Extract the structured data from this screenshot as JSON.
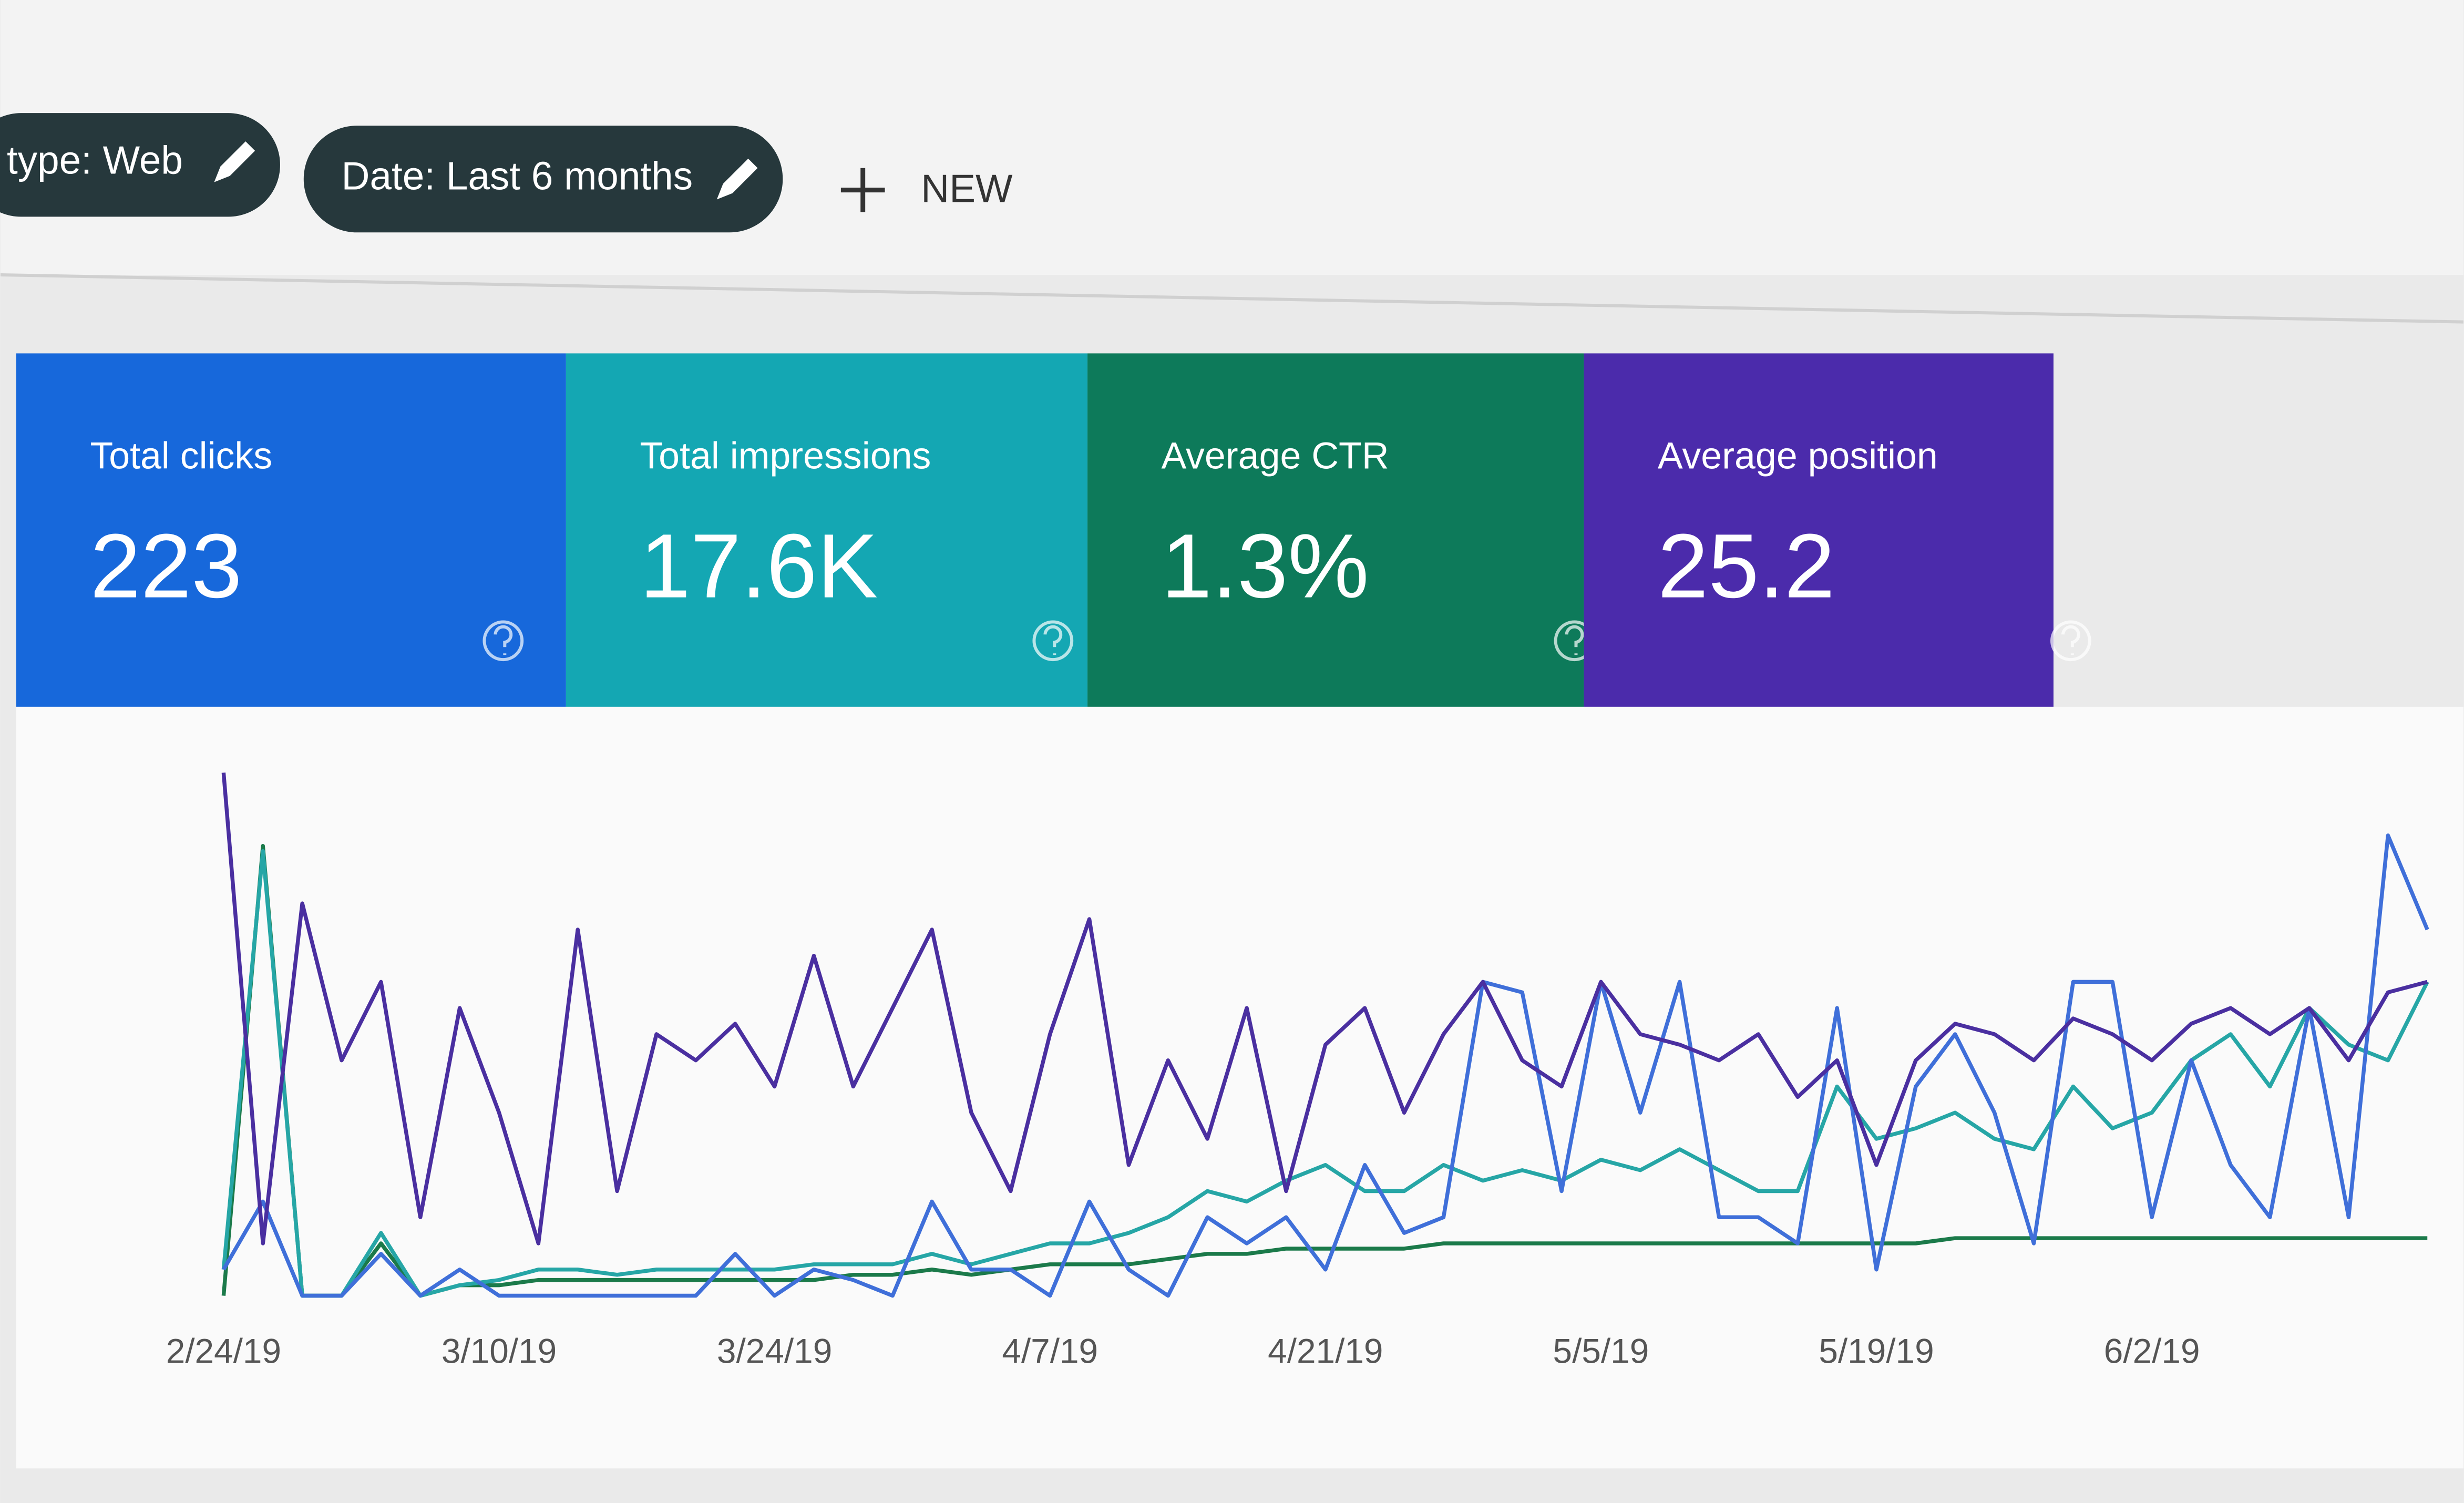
{
  "filters": [
    "type: Web",
    "Date: Last 6 months"
  ],
  "new_button": "NEW",
  "cards": [
    {
      "label": "Total clicks",
      "value": "223",
      "color": "#1768db"
    },
    {
      "label": "Total impressions",
      "value": "17.6K",
      "color": "#14a7b3"
    },
    {
      "label": "Average CTR",
      "value": "1.3%",
      "color": "#0d7a5a"
    },
    {
      "label": "Average position",
      "value": "25.2",
      "color": "#4b2bab"
    }
  ],
  "chart_data": {
    "type": "line",
    "categories": [
      "2/24/19",
      null,
      null,
      null,
      null,
      null,
      null,
      "3/10/19",
      null,
      null,
      null,
      null,
      null,
      null,
      "3/24/19",
      null,
      null,
      null,
      null,
      null,
      null,
      "4/7/19",
      null,
      null,
      null,
      null,
      null,
      null,
      "4/21/19",
      null,
      null,
      null,
      null,
      null,
      null,
      "5/5/19",
      null,
      null,
      null,
      null,
      null,
      null,
      "5/19/19",
      null,
      null,
      null,
      null,
      null,
      null,
      "6/2/19",
      null,
      null,
      null,
      null,
      null,
      null,
      null
    ],
    "ylim": [
      0,
      100
    ],
    "series": [
      {
        "color": "#1b7a4a",
        "values": [
          0,
          86,
          0,
          0,
          10,
          0,
          2,
          2,
          3,
          3,
          3,
          3,
          3,
          3,
          3,
          3,
          4,
          4,
          5,
          4,
          5,
          6,
          6,
          6,
          7,
          8,
          8,
          9,
          9,
          9,
          9,
          10,
          10,
          10,
          10,
          10,
          10,
          10,
          10,
          10,
          10,
          10,
          10,
          10,
          11,
          11,
          11,
          11,
          11,
          11,
          11,
          11,
          11,
          11,
          11,
          11,
          11
        ]
      },
      {
        "color": "#26a6a6",
        "values": [
          5,
          85,
          0,
          0,
          12,
          0,
          2,
          3,
          5,
          5,
          4,
          5,
          5,
          5,
          5,
          6,
          6,
          6,
          8,
          6,
          8,
          10,
          10,
          12,
          15,
          20,
          18,
          22,
          25,
          20,
          20,
          25,
          22,
          24,
          22,
          26,
          24,
          28,
          24,
          20,
          20,
          40,
          30,
          32,
          35,
          30,
          28,
          40,
          32,
          35,
          45,
          50,
          40,
          55,
          48,
          45,
          60
        ]
      },
      {
        "color": "#3f6fd9",
        "values": [
          5,
          18,
          0,
          0,
          8,
          0,
          5,
          0,
          0,
          0,
          0,
          0,
          0,
          8,
          0,
          5,
          3,
          0,
          18,
          5,
          5,
          0,
          18,
          5,
          0,
          15,
          10,
          15,
          5,
          25,
          12,
          15,
          60,
          58,
          20,
          60,
          35,
          60,
          15,
          15,
          10,
          55,
          5,
          40,
          50,
          35,
          10,
          60,
          60,
          15,
          45,
          25,
          15,
          55,
          15,
          88,
          70
        ]
      },
      {
        "color": "#4a2fa0",
        "values": [
          100,
          10,
          75,
          45,
          60,
          15,
          55,
          35,
          10,
          70,
          20,
          50,
          45,
          52,
          40,
          65,
          40,
          55,
          70,
          35,
          20,
          50,
          72,
          25,
          45,
          30,
          55,
          20,
          48,
          55,
          35,
          50,
          60,
          45,
          40,
          60,
          50,
          48,
          45,
          50,
          38,
          45,
          25,
          45,
          52,
          50,
          45,
          53,
          50,
          45,
          52,
          55,
          50,
          55,
          45,
          58,
          60
        ]
      }
    ]
  }
}
